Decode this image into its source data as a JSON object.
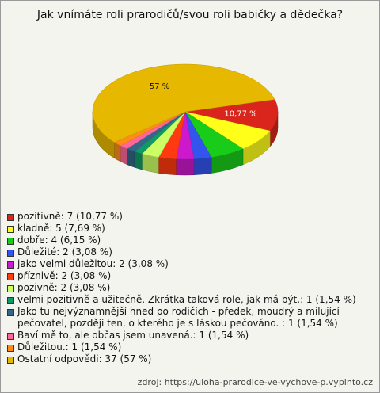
{
  "chart_data": {
    "type": "pie3d",
    "title": "Jak vnímáte roli prarodičů/svou roli babičky a dědečka?",
    "categories": [
      "pozitivně: 7 (10,77 %)",
      "kladně: 5 (7,69 %)",
      "dobře: 4 (6,15 %)",
      "Důležité: 2 (3,08 %)",
      "jako velmi důležitou: 2 (3,08 %)",
      "příznivě: 2 (3,08 %)",
      "pozivně: 2 (3,08 %)",
      "velmi pozitivně a užitečně. Zkrátka taková role, jak má být.: 1 (1,54 %)",
      "Jako tu nejvýznamnější hned po rodičích - předek, moudrý a milující pečovatel, později ten, o kterého je s láskou pečováno. : 1 (1,54 %)",
      "Baví mě to, ale občas jsem unavená.: 1 (1,54 %)",
      "Důležitou.: 1 (1,54 %)",
      "Ostatní odpovědi: 37 (57 %)"
    ],
    "values": [
      10.77,
      7.69,
      6.15,
      3.08,
      3.08,
      3.08,
      3.08,
      1.54,
      1.54,
      1.54,
      1.54,
      57
    ],
    "value_labels": [
      "10,77 %",
      null,
      null,
      null,
      null,
      null,
      null,
      null,
      null,
      null,
      null,
      "57 %"
    ],
    "colors": [
      "#d9251b",
      "#ffff1a",
      "#19cc19",
      "#3355ee",
      "#cc19cc",
      "#ff3a10",
      "#ccff66",
      "#109966",
      "#336688",
      "#ff6699",
      "#ff8c1a",
      "#e6b800"
    ],
    "source": "zdroj: https://uloha-prarodice-ve-vychove-p.vyplnto.cz"
  }
}
